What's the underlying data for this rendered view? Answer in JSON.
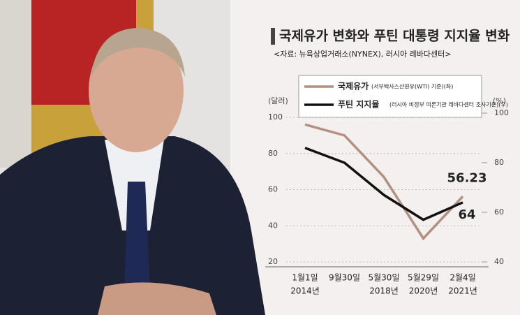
{
  "chart_data": {
    "type": "line",
    "title": "국제유가 변화와 푸틴 대통령 지지율 변화",
    "subtitle": "<자료: 뉴욕상업거래소(NYNEX), 러시아 레바다센터>",
    "ylabel": "(달러)",
    "y2label": "(%)",
    "categories": [
      "1월1일",
      "9월30일",
      "5월30일",
      "5월29일",
      "2월4일"
    ],
    "category_years": [
      "2014년",
      null,
      "2018년",
      "2020년",
      "2021년"
    ],
    "ylim": [
      20,
      100
    ],
    "yticks": [
      20,
      40,
      60,
      80,
      100
    ],
    "y2lim": [
      40,
      100
    ],
    "y2ticks": [
      40,
      60,
      80,
      100
    ],
    "grid": true,
    "series": [
      {
        "name": "국제유가",
        "note": "(서부텍사스산원유(WTI) 기준)(좌)",
        "color": "#b3917f",
        "values": [
          96,
          90,
          67,
          33,
          56.23
        ]
      },
      {
        "name": "푸틴 지지율",
        "note": "(러시아 비정부 여론기관 레바다센터 조사기준)(우)",
        "color": "#111111",
        "axis": "y2",
        "values": [
          86,
          80,
          67,
          57,
          64
        ]
      }
    ]
  }
}
